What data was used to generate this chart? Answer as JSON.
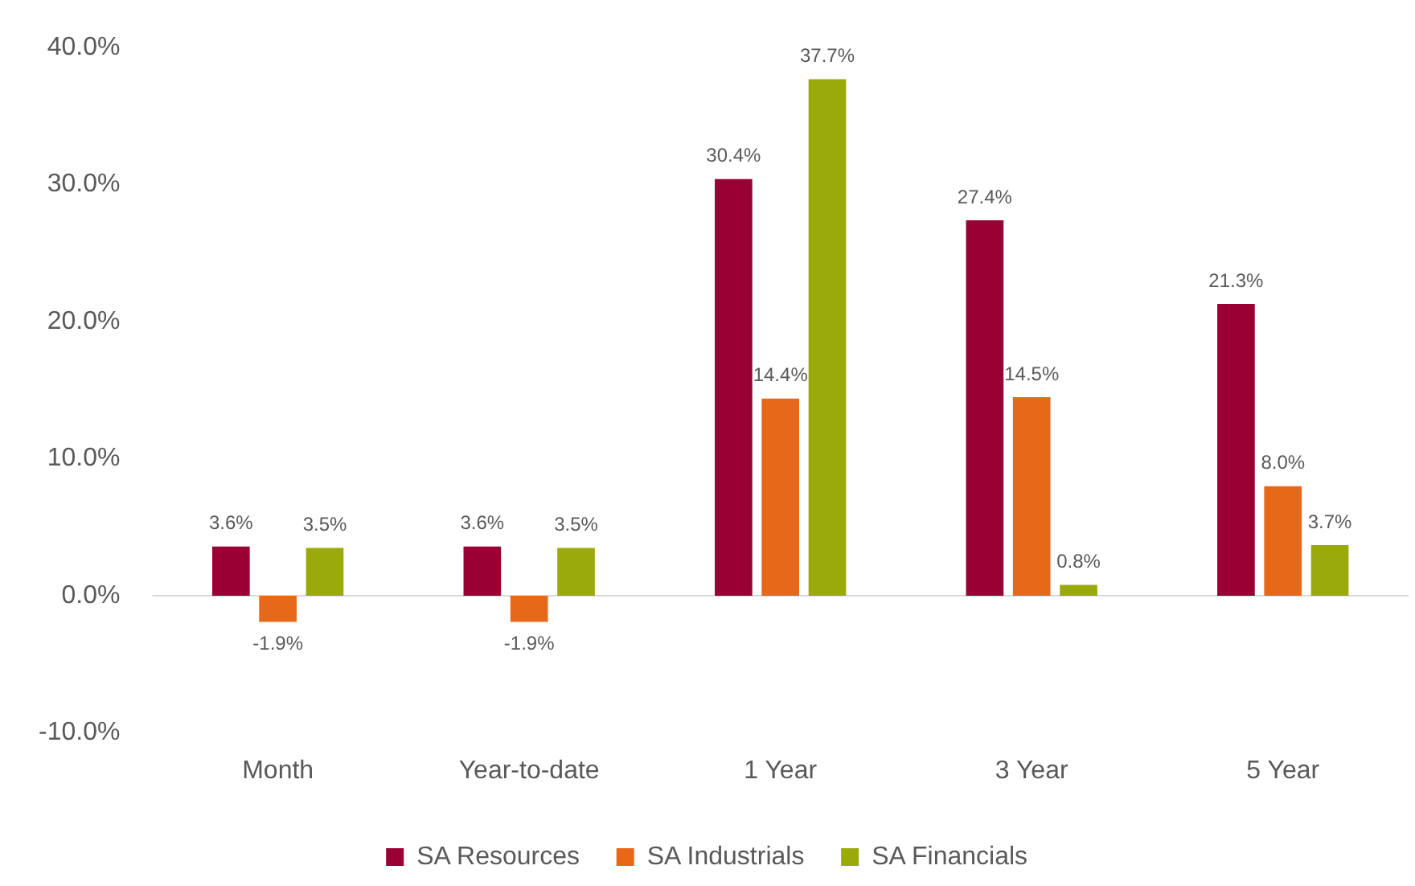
{
  "chart_data": {
    "type": "bar",
    "categories": [
      "Month",
      "Year-to-date",
      "1 Year",
      "3 Year",
      "5 Year"
    ],
    "series": [
      {
        "name": "SA Resources",
        "color": "#9b0035",
        "values": [
          3.6,
          3.6,
          30.4,
          27.4,
          21.3
        ],
        "value_labels": [
          "3.6%",
          "3.6%",
          "30.4%",
          "27.4%",
          "21.3%"
        ]
      },
      {
        "name": "SA Industrials",
        "color": "#e8681a",
        "values": [
          -1.9,
          -1.9,
          14.4,
          14.5,
          8.0
        ],
        "value_labels": [
          "-1.9%",
          "-1.9%",
          "14.4%",
          "14.5%",
          "8.0%"
        ]
      },
      {
        "name": "SA Financials",
        "color": "#9aab09",
        "values": [
          3.5,
          3.5,
          37.7,
          0.8,
          3.7
        ],
        "value_labels": [
          "3.5%",
          "3.5%",
          "37.7%",
          "0.8%",
          "3.7%"
        ]
      }
    ],
    "ylim": [
      -10,
      40
    ],
    "yticks": [
      {
        "value": -10,
        "label": "-10.0%"
      },
      {
        "value": 0,
        "label": "0.0%"
      },
      {
        "value": 10,
        "label": "10.0%"
      },
      {
        "value": 20,
        "label": "20.0%"
      },
      {
        "value": 30,
        "label": "30.0%"
      },
      {
        "value": 40,
        "label": "40.0%"
      }
    ],
    "ref_lines": [
      {
        "axis": "y",
        "value": 0,
        "color": "#d9d9d9"
      }
    ],
    "grid": false,
    "legend": "bottom"
  }
}
